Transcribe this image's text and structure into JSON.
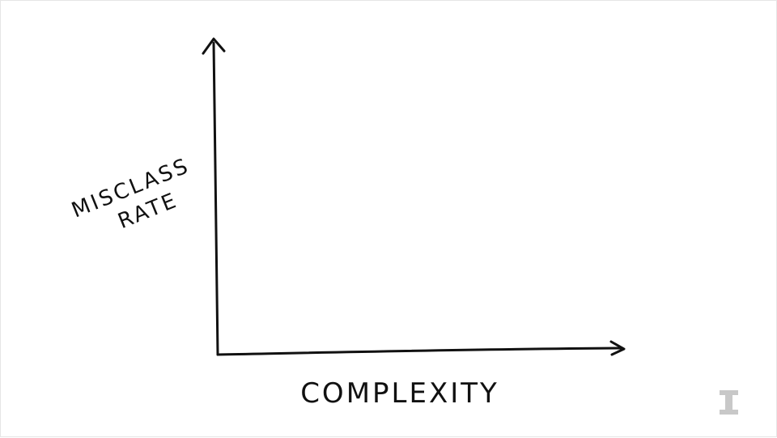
{
  "chart_data": {
    "type": "line",
    "xlabel": "Complexity",
    "ylabel": "Misclass Rate",
    "series": [],
    "grid": false
  },
  "logo": {
    "icon": "block-i-logo",
    "color": "#c8c8c8"
  }
}
